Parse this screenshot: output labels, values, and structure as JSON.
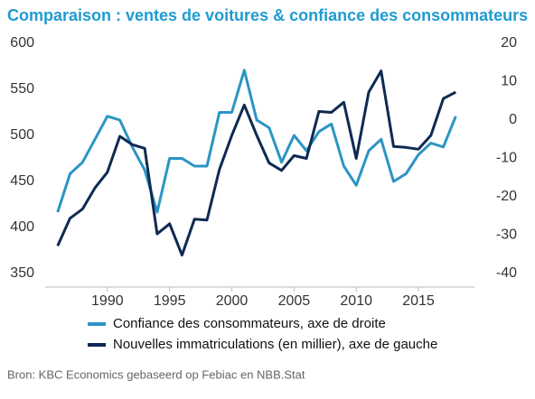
{
  "chart_data": {
    "type": "line",
    "title": "Comparaison :  ventes de voitures & confiance des consommateurs",
    "source": "Bron: KBC Economics gebaseerd op Febiac en NBB.Stat",
    "x": [
      1986,
      1987,
      1988,
      1989,
      1990,
      1991,
      1992,
      1993,
      1994,
      1995,
      1996,
      1997,
      1998,
      1999,
      2000,
      2001,
      2002,
      2003,
      2004,
      2005,
      2006,
      2007,
      2008,
      2009,
      2010,
      2011,
      2012,
      2013,
      2014,
      2015,
      2016,
      2017,
      2018
    ],
    "xlim": [
      1985,
      2019.5
    ],
    "xticks": [
      1990,
      1995,
      2000,
      2005,
      2010,
      2015
    ],
    "ylim": [
      350,
      600
    ],
    "yticks": [
      350,
      400,
      450,
      500,
      550,
      600
    ],
    "y2lim": [
      -40,
      20
    ],
    "y2ticks": [
      -40,
      -30,
      -20,
      -10,
      0,
      10,
      20
    ],
    "series": [
      {
        "name": "Confiance des consommateurs, axe de droite",
        "color": "#2b95c4",
        "axis": "y2",
        "values": [
          -24,
          -14,
          -11,
          -5,
          1,
          0,
          -7,
          -13,
          -24,
          -10,
          -10,
          -12,
          -12,
          2,
          2,
          13,
          0,
          -2,
          -11,
          -4,
          -8,
          -3,
          -1,
          -12,
          -17,
          -8,
          -5,
          -16,
          -14,
          -9,
          -6,
          -7,
          1
        ]
      },
      {
        "name": "Nouvelles immatriculations (en millier), axe de gauche",
        "color": "#0e2a52",
        "values": [
          380,
          410,
          420,
          443,
          460,
          499,
          490,
          486,
          393,
          404,
          370,
          409,
          408,
          463,
          500,
          533,
          500,
          470,
          462,
          478,
          475,
          526,
          525,
          536,
          475,
          547,
          570,
          488,
          487,
          485,
          500,
          540,
          547
        ]
      }
    ]
  }
}
